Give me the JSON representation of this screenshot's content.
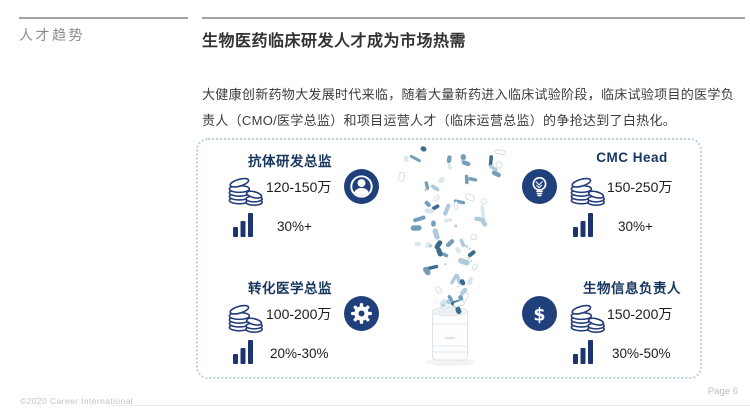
{
  "slide": {
    "eyebrow": "人才趋势",
    "title": "生物医药临床研发人才成为市场热需",
    "paragraph": "大健康创新药物大发展时代来临，随着大量新药进入临床试验阶段，临床试验项目的医学负责人（CMO/医学总监）和项目运营人才（临床运营总监）的争抢达到了白热化。",
    "footer": {
      "copyright": "©2020 Career International",
      "page": "Page 6"
    }
  },
  "colors": {
    "icon_navy": "#20407c",
    "title_navy": "#17365d",
    "header_rule_gray": "#a3a3a3",
    "body_text": "#3d3d3d",
    "box_border_blue": "#bcd0e8",
    "pill_blue_light": "#d8e6ee",
    "pill_blue_mid": "#aecadb",
    "pill_blue_deep": "#3a6a8c"
  },
  "roles": [
    {
      "title": "抗体研发总监",
      "salary": "120-150万",
      "growth": "30%+",
      "icon": "person-icon"
    },
    {
      "title": "CMC Head",
      "salary": "150-250万",
      "growth": "30%+",
      "icon": "lightbulb-icon"
    },
    {
      "title": "转化医学总监",
      "salary": "100-200万",
      "growth": "20%-30%",
      "icon": "gear-icon"
    },
    {
      "title": "生物信息负责人",
      "salary": "150-200万",
      "growth": "30%-50%",
      "icon": "dollar-icon"
    }
  ]
}
